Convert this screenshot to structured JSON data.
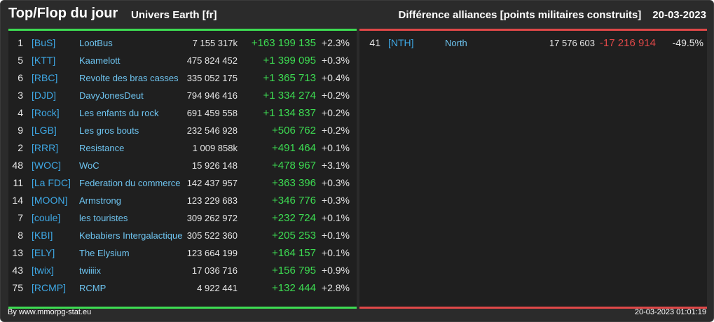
{
  "header": {
    "title": "Top/Flop du jour",
    "universe": "Univers Earth [fr]",
    "category": "Différence alliances [points militaires construits]",
    "date": "20-03-2023"
  },
  "colors": {
    "positive": "#3ddc52",
    "negative": "#e04848",
    "tag": "#3ea8e5",
    "name": "#6ec4f0"
  },
  "top": [
    {
      "rank": "1",
      "tag": "[BuS]",
      "name": "LootBus",
      "points": "7 155 317k",
      "delta": "+163 199 135",
      "pct": "+2.3%"
    },
    {
      "rank": "5",
      "tag": "[KTT]",
      "name": "Kaamelott",
      "points": "475 824 452",
      "delta": "+1 399 095",
      "pct": "+0.3%"
    },
    {
      "rank": "6",
      "tag": "[RBC]",
      "name": "Revolte des bras casses",
      "points": "335 052 175",
      "delta": "+1 365 713",
      "pct": "+0.4%"
    },
    {
      "rank": "3",
      "tag": "[DJD]",
      "name": "DavyJonesDeut",
      "points": "794 946 416",
      "delta": "+1 334 274",
      "pct": "+0.2%"
    },
    {
      "rank": "4",
      "tag": "[Rock]",
      "name": "Les enfants du rock",
      "points": "691 459 558",
      "delta": "+1 134 837",
      "pct": "+0.2%"
    },
    {
      "rank": "9",
      "tag": "[LGB]",
      "name": "Les gros bouts",
      "points": "232 546 928",
      "delta": "+506 762",
      "pct": "+0.2%"
    },
    {
      "rank": "2",
      "tag": "[RRR]",
      "name": "Resistance",
      "points": "1 009 858k",
      "delta": "+491 464",
      "pct": "+0.1%"
    },
    {
      "rank": "48",
      "tag": "[WOC]",
      "name": "WoC",
      "points": "15 926 148",
      "delta": "+478 967",
      "pct": "+3.1%"
    },
    {
      "rank": "11",
      "tag": "[La FDC]",
      "name": "Federation du commerce",
      "points": "142 437 957",
      "delta": "+363 396",
      "pct": "+0.3%"
    },
    {
      "rank": "14",
      "tag": "[MOON]",
      "name": "Armstrong",
      "points": "123 229 683",
      "delta": "+346 776",
      "pct": "+0.3%"
    },
    {
      "rank": "7",
      "tag": "[coule]",
      "name": "les touristes",
      "points": "309 262 972",
      "delta": "+232 724",
      "pct": "+0.1%"
    },
    {
      "rank": "8",
      "tag": "[KBI]",
      "name": "Kebabiers Intergalactique",
      "points": "305 522 360",
      "delta": "+205 253",
      "pct": "+0.1%"
    },
    {
      "rank": "13",
      "tag": "[ELY]",
      "name": "The Elysium",
      "points": "123 664 199",
      "delta": "+164 157",
      "pct": "+0.1%"
    },
    {
      "rank": "43",
      "tag": "[twix]",
      "name": "twiiiix",
      "points": "17 036 716",
      "delta": "+156 795",
      "pct": "+0.9%"
    },
    {
      "rank": "75",
      "tag": "[RCMP]",
      "name": "RCMP",
      "points": "4 922 441",
      "delta": "+132 444",
      "pct": "+2.8%"
    }
  ],
  "flop": [
    {
      "rank": "41",
      "tag": "[NTH]",
      "name": "North",
      "points": "17 576 603",
      "delta": "-17 216 914",
      "pct": "-49.5%"
    }
  ],
  "footer": {
    "source": "By www.mmorpg-stat.eu",
    "timestamp": "20-03-2023 01:01:19"
  }
}
